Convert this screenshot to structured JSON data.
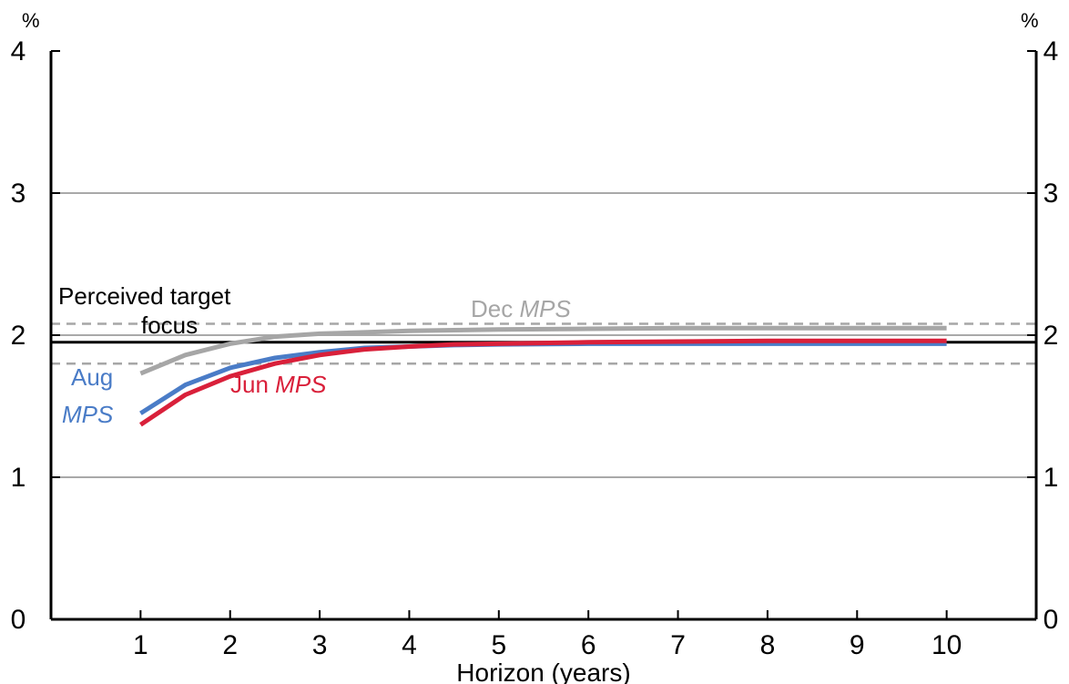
{
  "chart_data": {
    "type": "line",
    "xlabel": "Horizon (years)",
    "y_unit_left": "%",
    "y_unit_right": "%",
    "xlim": [
      0,
      11
    ],
    "ylim": [
      0,
      4
    ],
    "x_ticks": [
      "1",
      "2",
      "3",
      "4",
      "5",
      "6",
      "7",
      "8",
      "9",
      "10"
    ],
    "y_ticks": [
      "0",
      "1",
      "2",
      "3",
      "4"
    ],
    "grid": true,
    "x": [
      1,
      1.5,
      2,
      2.5,
      3,
      3.5,
      4,
      4.5,
      5,
      6,
      7,
      8,
      9,
      10
    ],
    "series": [
      {
        "name": "Dec MPS",
        "color": "#a6a6a6",
        "values": [
          1.73,
          1.86,
          1.94,
          1.99,
          2.01,
          2.02,
          2.03,
          2.035,
          2.04,
          2.045,
          2.05,
          2.05,
          2.05,
          2.05
        ]
      },
      {
        "name": "Aug MPS",
        "color": "#4a7cc7",
        "values": [
          1.45,
          1.65,
          1.77,
          1.84,
          1.88,
          1.91,
          1.92,
          1.93,
          1.935,
          1.94,
          1.94,
          1.94,
          1.94,
          1.94
        ]
      },
      {
        "name": "Jun MPS",
        "color": "#d9203a",
        "values": [
          1.37,
          1.58,
          1.71,
          1.8,
          1.86,
          1.9,
          1.92,
          1.935,
          1.94,
          1.95,
          1.955,
          1.96,
          1.96,
          1.96
        ]
      }
    ],
    "reference_lines": [
      {
        "name": "Perceived target focus",
        "value": 1.95,
        "style": "solid",
        "color": "#000000"
      },
      {
        "name": "upper band",
        "value": 2.08,
        "style": "dashed",
        "color": "#a6a6a6"
      },
      {
        "name": "lower band",
        "value": 1.8,
        "style": "dashed",
        "color": "#a6a6a6"
      }
    ],
    "annotations": {
      "target_line1": "Perceived target",
      "target_line2": "focus",
      "dec_prefix": "Dec ",
      "dec_italic": "MPS",
      "aug_line1": "Aug",
      "aug_line2": "MPS",
      "jun_prefix": "Jun ",
      "jun_italic": "MPS"
    }
  }
}
